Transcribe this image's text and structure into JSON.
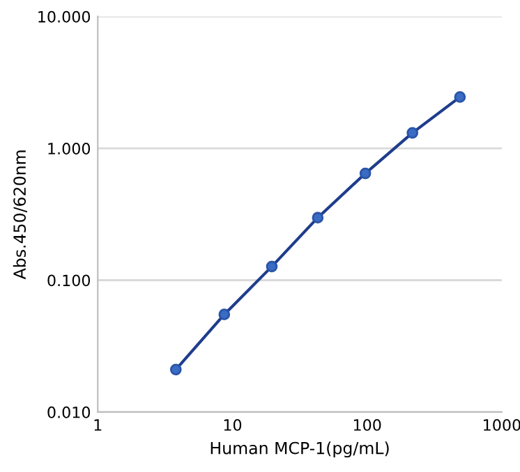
{
  "chart_data": {
    "type": "line",
    "xlabel": "Human MCP-1(pg/mL)",
    "ylabel": "Abs.450/620nm",
    "log": "xy",
    "grid": "y",
    "marker": "circle",
    "line_style": "solid",
    "x": [
      3.8,
      8.7,
      19.6,
      43,
      97,
      217,
      489
    ],
    "series": [
      {
        "color": "#1f3d8c",
        "values": [
          0.021,
          0.055,
          0.127,
          0.298,
          0.646,
          1.31,
          2.45
        ]
      }
    ],
    "xlim": [
      1,
      1000
    ],
    "xticks": [
      1,
      10,
      100,
      1000
    ],
    "ylim": [
      0.01,
      10
    ],
    "yticks": [
      {
        "value": 0.01,
        "label": "0.010"
      },
      {
        "value": 0.1,
        "label": "0.100"
      },
      {
        "value": 1,
        "label": "1.000"
      },
      {
        "value": 10,
        "label": "10.000"
      }
    ]
  }
}
